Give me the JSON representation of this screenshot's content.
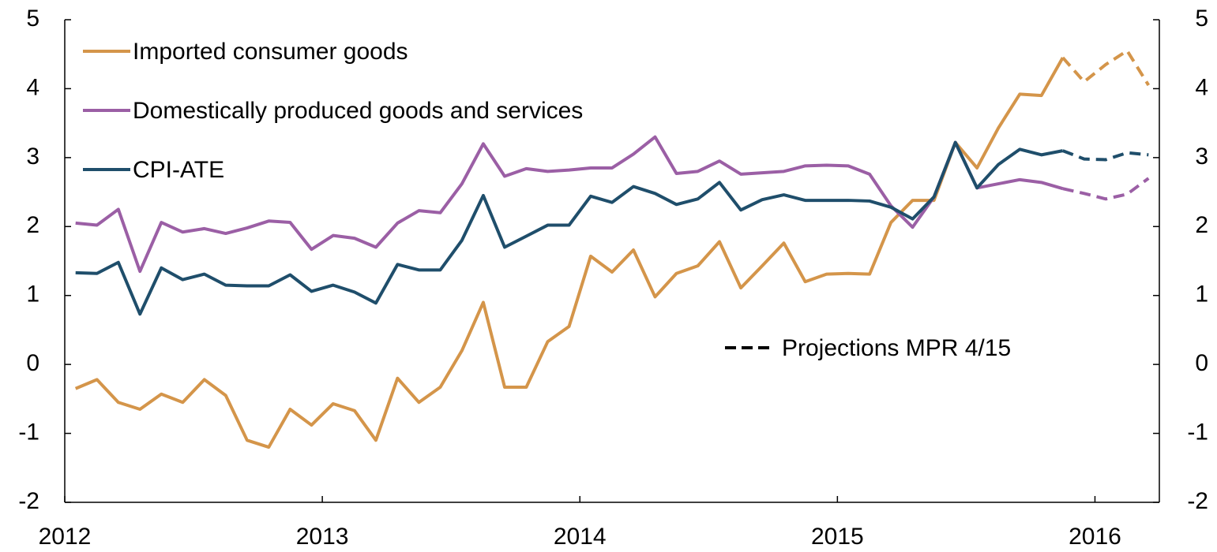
{
  "chart_data": {
    "type": "line",
    "x": [
      2012.042,
      2012.125,
      2012.208,
      2012.292,
      2012.375,
      2012.458,
      2012.542,
      2012.625,
      2012.708,
      2012.792,
      2012.875,
      2012.958,
      2013.042,
      2013.125,
      2013.208,
      2013.292,
      2013.375,
      2013.458,
      2013.542,
      2013.625,
      2013.708,
      2013.792,
      2013.875,
      2013.958,
      2014.042,
      2014.125,
      2014.208,
      2014.292,
      2014.375,
      2014.458,
      2014.542,
      2014.625,
      2014.708,
      2014.792,
      2014.875,
      2014.958,
      2015.042,
      2015.125,
      2015.208,
      2015.292,
      2015.375,
      2015.458,
      2015.542,
      2015.625,
      2015.708,
      2015.792,
      2015.875,
      2015.958,
      2016.042,
      2016.125,
      2016.208
    ],
    "series": [
      {
        "name": "Imported consumer goods",
        "color": "#d4954a",
        "values": [
          -0.35,
          -0.22,
          -0.55,
          -0.65,
          -0.43,
          -0.55,
          -0.22,
          -0.45,
          -1.1,
          -1.2,
          -0.65,
          -0.88,
          -0.57,
          -0.67,
          -1.1,
          -0.2,
          -0.55,
          -0.33,
          0.2,
          0.9,
          -0.33,
          -0.33,
          0.33,
          0.55,
          1.57,
          1.34,
          1.66,
          0.98,
          1.32,
          1.43,
          1.78,
          1.11,
          1.43,
          1.76,
          1.2,
          1.31,
          1.32,
          1.31,
          2.06,
          2.38,
          2.38,
          3.22,
          2.85,
          3.43,
          3.92,
          3.9,
          4.45,
          null,
          null,
          null,
          null
        ],
        "projection": [
          null,
          null,
          null,
          null,
          null,
          null,
          null,
          null,
          null,
          null,
          null,
          null,
          null,
          null,
          null,
          null,
          null,
          null,
          null,
          null,
          null,
          null,
          null,
          null,
          null,
          null,
          null,
          null,
          null,
          null,
          null,
          null,
          null,
          null,
          null,
          null,
          null,
          null,
          null,
          null,
          null,
          null,
          null,
          null,
          null,
          null,
          4.45,
          4.1,
          4.35,
          4.55,
          4.05
        ]
      },
      {
        "name": "Domestically produced goods and services",
        "color": "#9b5fa5",
        "values": [
          2.05,
          2.02,
          2.25,
          1.35,
          2.06,
          1.92,
          1.97,
          1.9,
          1.98,
          2.08,
          2.06,
          1.67,
          1.87,
          1.83,
          1.7,
          2.05,
          2.23,
          2.2,
          2.62,
          3.2,
          2.73,
          2.84,
          2.8,
          2.82,
          2.85,
          2.85,
          3.05,
          3.3,
          2.77,
          2.8,
          2.95,
          2.76,
          2.78,
          2.8,
          2.88,
          2.89,
          2.88,
          2.76,
          2.3,
          1.99,
          2.43,
          3.22,
          2.56,
          2.62,
          2.68,
          2.64,
          2.55,
          null,
          null,
          null,
          null
        ],
        "projection": [
          null,
          null,
          null,
          null,
          null,
          null,
          null,
          null,
          null,
          null,
          null,
          null,
          null,
          null,
          null,
          null,
          null,
          null,
          null,
          null,
          null,
          null,
          null,
          null,
          null,
          null,
          null,
          null,
          null,
          null,
          null,
          null,
          null,
          null,
          null,
          null,
          null,
          null,
          null,
          null,
          null,
          null,
          null,
          null,
          null,
          null,
          2.55,
          2.48,
          2.4,
          2.47,
          2.7
        ]
      },
      {
        "name": "CPI-ATE",
        "color": "#1f4e6b",
        "values": [
          1.33,
          1.32,
          1.48,
          0.73,
          1.4,
          1.23,
          1.31,
          1.15,
          1.14,
          1.14,
          1.3,
          1.06,
          1.15,
          1.05,
          0.89,
          1.45,
          1.37,
          1.37,
          1.8,
          2.45,
          1.7,
          1.86,
          2.02,
          2.02,
          2.44,
          2.35,
          2.58,
          2.48,
          2.32,
          2.4,
          2.64,
          2.24,
          2.39,
          2.46,
          2.38,
          2.38,
          2.38,
          2.37,
          2.28,
          2.11,
          2.43,
          3.22,
          2.56,
          2.9,
          3.12,
          3.04,
          3.1,
          null,
          null,
          null,
          null
        ],
        "projection": [
          null,
          null,
          null,
          null,
          null,
          null,
          null,
          null,
          null,
          null,
          null,
          null,
          null,
          null,
          null,
          null,
          null,
          null,
          null,
          null,
          null,
          null,
          null,
          null,
          null,
          null,
          null,
          null,
          null,
          null,
          null,
          null,
          null,
          null,
          null,
          null,
          null,
          null,
          null,
          null,
          null,
          null,
          null,
          null,
          null,
          null,
          3.1,
          2.98,
          2.97,
          3.07,
          3.04
        ]
      }
    ],
    "annotation": "Projections MPR 4/15",
    "xlim": [
      2012,
      2016.25
    ],
    "xticks": [
      2012,
      2013,
      2014,
      2015,
      2016
    ],
    "ylim": [
      -2,
      5
    ],
    "yticks": [
      -2,
      -1,
      0,
      1,
      2,
      3,
      4,
      5
    ],
    "y2lim": [
      -2,
      5
    ],
    "y2ticks": [
      -2,
      -1,
      0,
      1,
      2,
      3,
      4,
      5
    ],
    "grid": false,
    "legend": "upper left"
  }
}
